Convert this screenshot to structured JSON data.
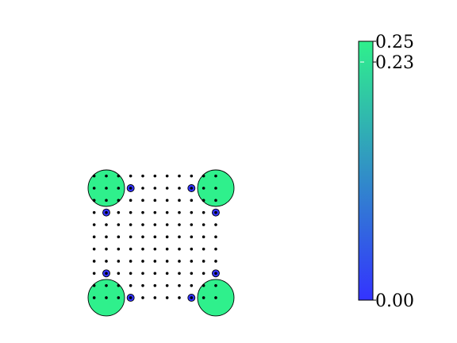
{
  "chart_data": {
    "type": "scatter",
    "title": "",
    "xlabel": "",
    "ylabel": "",
    "axes_visible": false,
    "grid": false,
    "grid_points": {
      "x": [
        -1,
        0,
        1,
        2,
        3,
        4,
        5,
        6,
        7,
        8,
        9
      ],
      "y": [
        -1,
        0,
        1,
        2,
        3,
        4,
        5,
        6,
        7,
        8,
        9
      ],
      "color": "#000000"
    },
    "sites": [
      {
        "x": 0,
        "y": 0,
        "value": 0.25
      },
      {
        "x": 9,
        "y": 0,
        "value": 0.25
      },
      {
        "x": 0,
        "y": 9,
        "value": 0.25
      },
      {
        "x": 9,
        "y": 9,
        "value": 0.25
      },
      {
        "x": 2,
        "y": 0,
        "value": 0.0
      },
      {
        "x": 7,
        "y": 0,
        "value": 0.0
      },
      {
        "x": 0,
        "y": 2,
        "value": 0.0
      },
      {
        "x": 9,
        "y": 2,
        "value": 0.0
      },
      {
        "x": 0,
        "y": 7,
        "value": 0.0
      },
      {
        "x": 9,
        "y": 7,
        "value": 0.0
      },
      {
        "x": 2,
        "y": 9,
        "value": 0.0
      },
      {
        "x": 7,
        "y": 9,
        "value": 0.0
      }
    ],
    "colorbar": {
      "min": 0.0,
      "max": 0.25,
      "colors": [
        "#3333ff",
        "#2ff08c"
      ],
      "ticks": [
        {
          "value": 0.25,
          "label": "0.25"
        },
        {
          "value": 0.23,
          "label": "0.23"
        },
        {
          "value": 0.0,
          "label": "0.00"
        }
      ]
    }
  }
}
